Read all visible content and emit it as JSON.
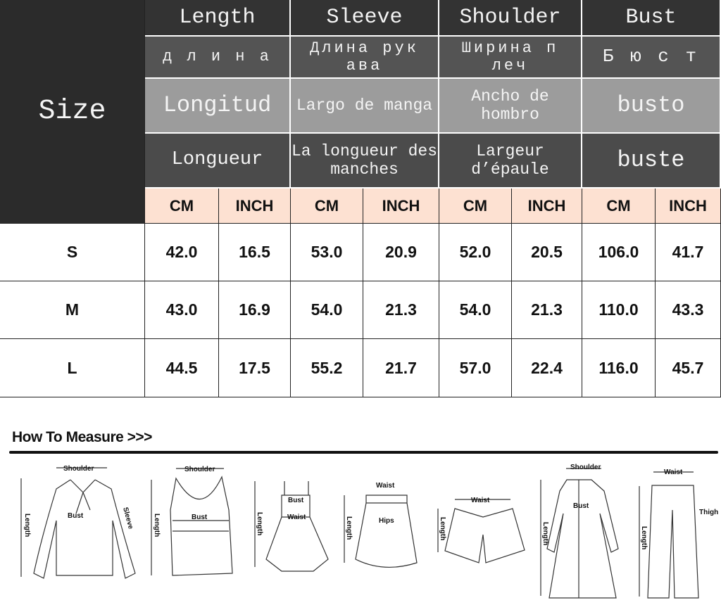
{
  "size_label": "Size",
  "columns": [
    {
      "en": "Length",
      "ru": "д л и н а",
      "es": "Longitud",
      "fr": "Longueur"
    },
    {
      "en": "Sleeve",
      "ru": "Длина рук ава",
      "es": "Largo de manga",
      "fr": "La longueur des manches"
    },
    {
      "en": "Shoulder",
      "ru": "Ширина п леч",
      "es": "Ancho de hombro",
      "fr": "Largeur d’épaule"
    },
    {
      "en": "Bust",
      "ru": "Б ю с т",
      "es": "busto",
      "fr": "buste"
    }
  ],
  "units": [
    "CM",
    "INCH"
  ],
  "rows": [
    {
      "size": "S",
      "values": [
        "42.0",
        "16.5",
        "53.0",
        "20.9",
        "52.0",
        "20.5",
        "106.0",
        "41.7"
      ]
    },
    {
      "size": "M",
      "values": [
        "43.0",
        "16.9",
        "54.0",
        "21.3",
        "54.0",
        "21.3",
        "110.0",
        "43.3"
      ]
    },
    {
      "size": "L",
      "values": [
        "44.5",
        "17.5",
        "55.2",
        "21.7",
        "57.0",
        "22.4",
        "116.0",
        "45.7"
      ]
    }
  ],
  "measure": {
    "title": "How To Measure >>>",
    "labels": {
      "shoulder": "Shoulder",
      "bust": "Bust",
      "sleeve": "Sleeve",
      "length": "Length",
      "waist": "Waist",
      "hips": "Hips",
      "thigh": "Thigh"
    }
  }
}
